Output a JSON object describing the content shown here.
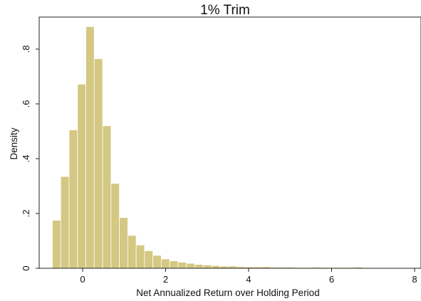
{
  "chart_data": {
    "type": "bar",
    "title": "1% Trim",
    "xlabel": "Net Annualized Return over Holding Period",
    "ylabel": "Density",
    "xlim": [
      -0.75,
      8.0
    ],
    "ylim": [
      0,
      0.9
    ],
    "xticks": [
      0,
      2,
      4,
      6,
      8
    ],
    "xtick_labels": [
      "0",
      "2",
      "4",
      "6",
      "8"
    ],
    "yticks": [
      0,
      0.2,
      0.4,
      0.6,
      0.8
    ],
    "ytick_labels": [
      "0",
      ".2",
      ".4",
      ".6",
      ".8"
    ],
    "grid": false,
    "bar_color": "#d4c882",
    "bin_start": -0.73,
    "bin_width": 0.202,
    "values": [
      0.175,
      0.335,
      0.505,
      0.672,
      0.882,
      0.765,
      0.52,
      0.31,
      0.185,
      0.12,
      0.085,
      0.064,
      0.047,
      0.034,
      0.027,
      0.022,
      0.018,
      0.014,
      0.012,
      0.01,
      0.008,
      0.008,
      0.006,
      0.005,
      0.005,
      0.006,
      0.004,
      0.004,
      0.004,
      0.003,
      0.003,
      0.004,
      0.003,
      0.003,
      0.003,
      0.003,
      0.004,
      0.002,
      0.002,
      0.002,
      0.002,
      0.002,
      0.002
    ]
  }
}
